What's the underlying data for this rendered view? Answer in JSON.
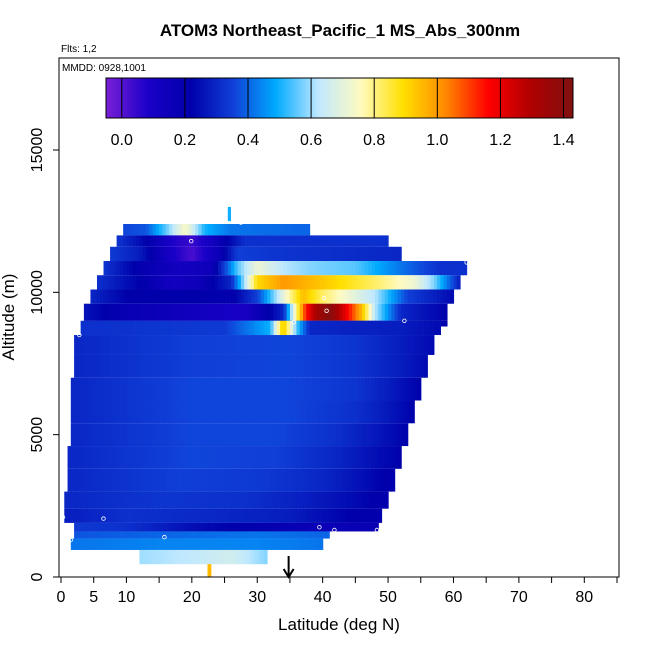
{
  "chart_data": {
    "type": "heatmap",
    "title": "ATOM3 Northeast_Pacific_1 MS_Abs_300nm",
    "flights_label": "Flts: 1,2",
    "dates_label": "MMDD: 0928,1001",
    "xlabel": "Latitude (deg N)",
    "ylabel": "Altitude (m)",
    "xlim": [
      0,
      85
    ],
    "ylim": [
      0,
      17500
    ],
    "x_ticks": [
      0,
      5,
      10,
      20,
      30,
      40,
      50,
      60,
      70,
      80
    ],
    "y_ticks": [
      0,
      5000,
      10000,
      15000
    ],
    "colorbar": {
      "range": [
        -0.05,
        1.43
      ],
      "ticks": [
        0.0,
        0.2,
        0.4,
        0.6,
        0.8,
        1.0,
        1.2,
        1.4
      ],
      "tick_labels": [
        "0.0",
        "0.2",
        "0.4",
        "0.6",
        "0.8",
        "1.0",
        "1.2",
        "1.4"
      ],
      "colors": [
        "#7a1fd6",
        "#1a00c8",
        "#0000aa",
        "#1040d8",
        "#00aaff",
        "#bfe8ff",
        "#fffac0",
        "#ffe000",
        "#ff8800",
        "#ff0000",
        "#b00000",
        "#801010"
      ]
    },
    "arrow_latitude": 34.8,
    "grid": false,
    "bands": [
      {
        "alt": [
          12000,
          12400
        ],
        "lat": [
          9.5,
          38
        ],
        "nodes": [
          [
            9.5,
            0.36
          ],
          [
            13,
            0.38
          ],
          [
            16,
            0.55
          ],
          [
            19,
            0.75
          ],
          [
            22,
            0.5
          ],
          [
            26,
            0.42
          ],
          [
            38,
            0.4
          ]
        ]
      },
      {
        "alt": [
          11600,
          12000
        ],
        "lat": [
          8.5,
          50
        ],
        "nodes": [
          [
            8.5,
            0.33
          ],
          [
            12,
            0.25
          ],
          [
            17,
            0.08
          ],
          [
            20,
            0.04
          ],
          [
            23,
            0.12
          ],
          [
            28,
            0.32
          ],
          [
            50,
            0.32
          ]
        ]
      },
      {
        "alt": [
          11100,
          11600
        ],
        "lat": [
          7.5,
          52
        ],
        "nodes": [
          [
            7.5,
            0.34
          ],
          [
            12,
            0.28
          ],
          [
            16,
            0.12
          ],
          [
            20,
            0.02
          ],
          [
            24,
            0.15
          ],
          [
            27,
            0.35
          ],
          [
            32,
            0.33
          ],
          [
            52,
            0.3
          ]
        ]
      },
      {
        "alt": [
          10600,
          11100
        ],
        "lat": [
          6.5,
          62
        ],
        "nodes": [
          [
            6.5,
            0.33
          ],
          [
            12,
            0.2
          ],
          [
            18,
            0.12
          ],
          [
            23,
            0.15
          ],
          [
            27,
            0.55
          ],
          [
            30,
            0.72
          ],
          [
            34,
            0.62
          ],
          [
            38,
            0.58
          ],
          [
            45,
            0.55
          ],
          [
            52,
            0.42
          ],
          [
            58,
            0.32
          ],
          [
            62,
            0.32
          ]
        ]
      },
      {
        "alt": [
          10100,
          10600
        ],
        "lat": [
          5.5,
          61
        ],
        "nodes": [
          [
            5.5,
            0.32
          ],
          [
            12,
            0.22
          ],
          [
            17,
            0.12
          ],
          [
            21,
            0.15
          ],
          [
            26,
            0.3
          ],
          [
            30,
            0.9
          ],
          [
            34,
            1.0
          ],
          [
            40,
            0.93
          ],
          [
            48,
            0.82
          ],
          [
            54,
            0.72
          ],
          [
            57,
            0.58
          ],
          [
            61,
            0.28
          ]
        ]
      },
      {
        "alt": [
          9600,
          10100
        ],
        "lat": [
          4.5,
          60
        ],
        "nodes": [
          [
            4.5,
            0.3
          ],
          [
            10,
            0.22
          ],
          [
            20,
            0.22
          ],
          [
            26,
            0.2
          ],
          [
            30,
            0.35
          ],
          [
            34,
            0.7
          ],
          [
            37,
            0.95
          ],
          [
            40,
            0.82
          ],
          [
            44,
            0.72
          ],
          [
            48,
            0.62
          ],
          [
            53,
            0.35
          ],
          [
            60,
            0.24
          ]
        ]
      },
      {
        "alt": [
          9000,
          9600
        ],
        "lat": [
          3.5,
          59
        ],
        "nodes": [
          [
            3.5,
            0.26
          ],
          [
            10,
            0.18
          ],
          [
            22,
            0.12
          ],
          [
            28,
            0.1
          ],
          [
            32,
            0.22
          ],
          [
            34,
            0.3
          ],
          [
            36,
            0.8
          ],
          [
            37.5,
            1.15
          ],
          [
            39,
            1.32
          ],
          [
            41,
            1.42
          ],
          [
            43,
            1.25
          ],
          [
            46,
            0.95
          ],
          [
            48,
            0.62
          ],
          [
            52,
            0.3
          ],
          [
            59,
            0.22
          ]
        ]
      },
      {
        "alt": [
          8800,
          9000
        ],
        "lat": [
          3.5,
          59
        ],
        "nodes": [
          [
            3.5,
            0.28
          ],
          [
            18,
            0.28
          ],
          [
            28,
            0.3
          ],
          [
            32,
            0.46
          ],
          [
            36,
            0.3
          ],
          [
            59,
            0.22
          ]
        ]
      },
      {
        "alt": [
          8500,
          9000
        ],
        "lat": [
          3,
          58
        ],
        "nodes": [
          [
            3,
            0.32
          ],
          [
            25,
            0.34
          ],
          [
            32,
            0.5
          ],
          [
            34,
            0.95
          ],
          [
            36,
            0.55
          ],
          [
            38,
            0.3
          ],
          [
            52,
            0.28
          ],
          [
            58,
            0.24
          ]
        ]
      },
      {
        "alt": [
          7800,
          8500
        ],
        "lat": [
          2,
          57
        ],
        "nodes": [
          [
            2,
            0.3
          ],
          [
            20,
            0.35
          ],
          [
            35,
            0.36
          ],
          [
            45,
            0.33
          ],
          [
            52,
            0.28
          ],
          [
            57,
            0.24
          ]
        ]
      },
      {
        "alt": [
          7000,
          7800
        ],
        "lat": [
          2,
          56
        ],
        "nodes": [
          [
            2,
            0.3
          ],
          [
            20,
            0.35
          ],
          [
            35,
            0.36
          ],
          [
            45,
            0.33
          ],
          [
            52,
            0.28
          ],
          [
            56,
            0.24
          ]
        ]
      },
      {
        "alt": [
          6200,
          7000
        ],
        "lat": [
          1.5,
          55
        ],
        "nodes": [
          [
            1.5,
            0.3
          ],
          [
            20,
            0.36
          ],
          [
            35,
            0.36
          ],
          [
            45,
            0.33
          ],
          [
            50,
            0.28
          ],
          [
            55,
            0.22
          ]
        ]
      },
      {
        "alt": [
          5400,
          6200
        ],
        "lat": [
          1.5,
          54
        ],
        "nodes": [
          [
            1.5,
            0.3
          ],
          [
            20,
            0.36
          ],
          [
            35,
            0.36
          ],
          [
            45,
            0.32
          ],
          [
            50,
            0.27
          ],
          [
            54,
            0.22
          ]
        ]
      },
      {
        "alt": [
          4600,
          5400
        ],
        "lat": [
          1.5,
          53
        ],
        "nodes": [
          [
            1.5,
            0.3
          ],
          [
            20,
            0.36
          ],
          [
            33,
            0.36
          ],
          [
            42,
            0.32
          ],
          [
            48,
            0.27
          ],
          [
            53,
            0.22
          ]
        ]
      },
      {
        "alt": [
          3800,
          4600
        ],
        "lat": [
          1,
          52
        ],
        "nodes": [
          [
            1,
            0.3
          ],
          [
            20,
            0.36
          ],
          [
            33,
            0.35
          ],
          [
            42,
            0.3
          ],
          [
            48,
            0.25
          ],
          [
            52,
            0.22
          ]
        ]
      },
      {
        "alt": [
          3000,
          3800
        ],
        "lat": [
          1,
          51
        ],
        "nodes": [
          [
            1,
            0.3
          ],
          [
            18,
            0.35
          ],
          [
            30,
            0.34
          ],
          [
            40,
            0.3
          ],
          [
            46,
            0.25
          ],
          [
            51,
            0.2
          ]
        ]
      },
      {
        "alt": [
          2400,
          3000
        ],
        "lat": [
          0.5,
          50
        ],
        "nodes": [
          [
            0.5,
            0.3
          ],
          [
            15,
            0.33
          ],
          [
            28,
            0.32
          ],
          [
            38,
            0.28
          ],
          [
            45,
            0.24
          ],
          [
            50,
            0.2
          ]
        ]
      },
      {
        "alt": [
          1900,
          2400
        ],
        "lat": [
          0.5,
          49
        ],
        "nodes": [
          [
            0.5,
            0.28
          ],
          [
            10,
            0.32
          ],
          [
            25,
            0.3
          ],
          [
            35,
            0.28
          ],
          [
            44,
            0.22
          ],
          [
            49,
            0.2
          ]
        ]
      },
      {
        "alt": [
          1600,
          1900
        ],
        "lat": [
          2,
          48.5
        ],
        "nodes": [
          [
            2,
            0.34
          ],
          [
            10,
            0.32
          ],
          [
            20,
            0.25
          ],
          [
            30,
            0.2
          ],
          [
            40,
            0.16
          ],
          [
            48.5,
            0.18
          ]
        ]
      },
      {
        "alt": [
          1350,
          1600
        ],
        "lat": [
          2,
          41
        ],
        "nodes": [
          [
            2,
            0.38
          ],
          [
            15,
            0.4
          ],
          [
            30,
            0.42
          ],
          [
            41,
            0.4
          ]
        ]
      },
      {
        "alt": [
          950,
          1350
        ],
        "lat": [
          1.5,
          40
        ],
        "nodes": [
          [
            1.5,
            0.42
          ],
          [
            15,
            0.44
          ],
          [
            30,
            0.44
          ],
          [
            40,
            0.42
          ]
        ]
      },
      {
        "alt": [
          450,
          950
        ],
        "lat": [
          12,
          31.5
        ],
        "nodes": [
          [
            12,
            0.6
          ],
          [
            20,
            0.63
          ],
          [
            26,
            0.66
          ],
          [
            31.5,
            0.58
          ]
        ]
      },
      {
        "alt": [
          0,
          450
        ],
        "lat": [
          22.4,
          22.9
        ],
        "nodes": [
          [
            22.4,
            0.95
          ],
          [
            22.9,
            0.95
          ]
        ]
      },
      {
        "alt": [
          12500,
          13000
        ],
        "lat": [
          25.5,
          25.9
        ],
        "nodes": [
          [
            25.5,
            0.5
          ],
          [
            25.9,
            0.5
          ]
        ]
      }
    ],
    "points": [
      [
        0.3,
        2100
      ],
      [
        1.5,
        1300
      ],
      [
        6.5,
        2050
      ],
      [
        15.8,
        1400
      ],
      [
        19.9,
        11800
      ],
      [
        27.5,
        12450
      ],
      [
        35.6,
        8950
      ],
      [
        40.2,
        9800
      ],
      [
        40.6,
        9350
      ],
      [
        39.5,
        1750
      ],
      [
        41.8,
        1650
      ],
      [
        48.3,
        1650
      ],
      [
        52.5,
        9000
      ],
      [
        62,
        11050
      ],
      [
        2.8,
        8500
      ]
    ]
  }
}
